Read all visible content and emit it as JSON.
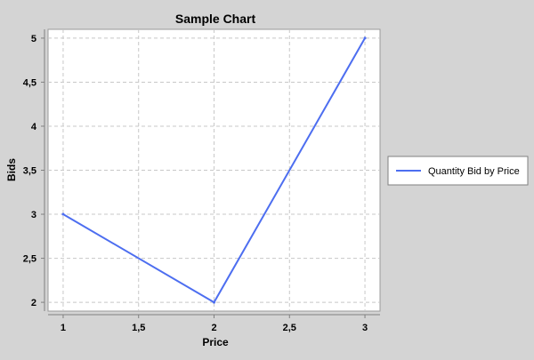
{
  "chart_data": {
    "type": "line",
    "title": "Sample Chart",
    "xlabel": "Price",
    "ylabel": "Bids",
    "x": [
      1,
      2,
      3
    ],
    "series": [
      {
        "name": "Quantity Bid by Price",
        "values": [
          3,
          2,
          5
        ],
        "color": "#4d6ef0"
      }
    ],
    "xlim": [
      0.9,
      3.1
    ],
    "ylim": [
      1.9,
      5.1
    ],
    "x_ticks": [
      "1",
      "1,5",
      "2",
      "2,5",
      "3"
    ],
    "y_ticks": [
      "2",
      "2,5",
      "3",
      "3,5",
      "4",
      "4,5",
      "5"
    ],
    "grid": true,
    "legend_position": "right",
    "colors": {
      "background": "#d4d4d4",
      "plot_background": "#ffffff",
      "grid": "#c8c8c8"
    }
  }
}
